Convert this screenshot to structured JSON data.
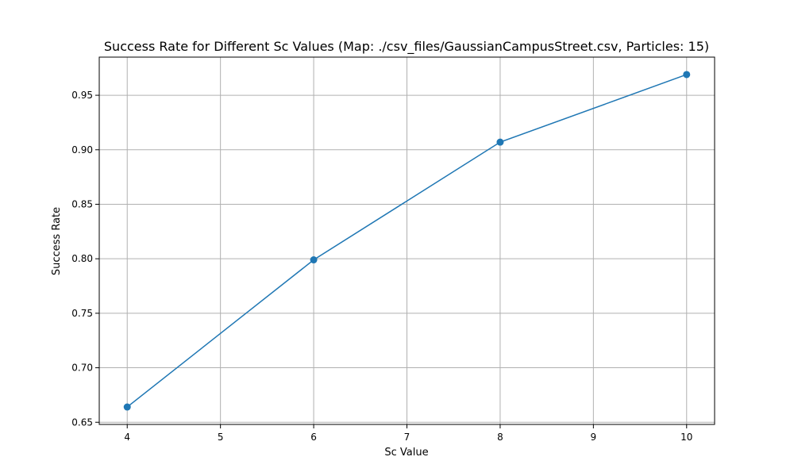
{
  "chart_data": {
    "type": "line",
    "title": "Success Rate for Different Sc Values (Map: ./csv_files/GaussianCampusStreet.csv, Particles: 15)",
    "xlabel": "Sc Value",
    "ylabel": "Success Rate",
    "x": [
      4,
      6,
      8,
      10
    ],
    "series": [
      {
        "values": [
          0.664,
          0.799,
          0.907,
          0.969
        ]
      }
    ],
    "xlim": [
      3.7,
      10.3
    ],
    "ylim": [
      0.648,
      0.985
    ],
    "xticks": [
      4,
      5,
      6,
      7,
      8,
      9,
      10
    ],
    "xtick_labels": [
      "4",
      "5",
      "6",
      "7",
      "8",
      "9",
      "10"
    ],
    "yticks": [
      0.65,
      0.7,
      0.75,
      0.8,
      0.85,
      0.9,
      0.95
    ],
    "ytick_labels": [
      "0.65",
      "0.70",
      "0.75",
      "0.80",
      "0.85",
      "0.90",
      "0.95"
    ],
    "grid": true,
    "line_color": "#1f77b4",
    "marker": "circle"
  }
}
